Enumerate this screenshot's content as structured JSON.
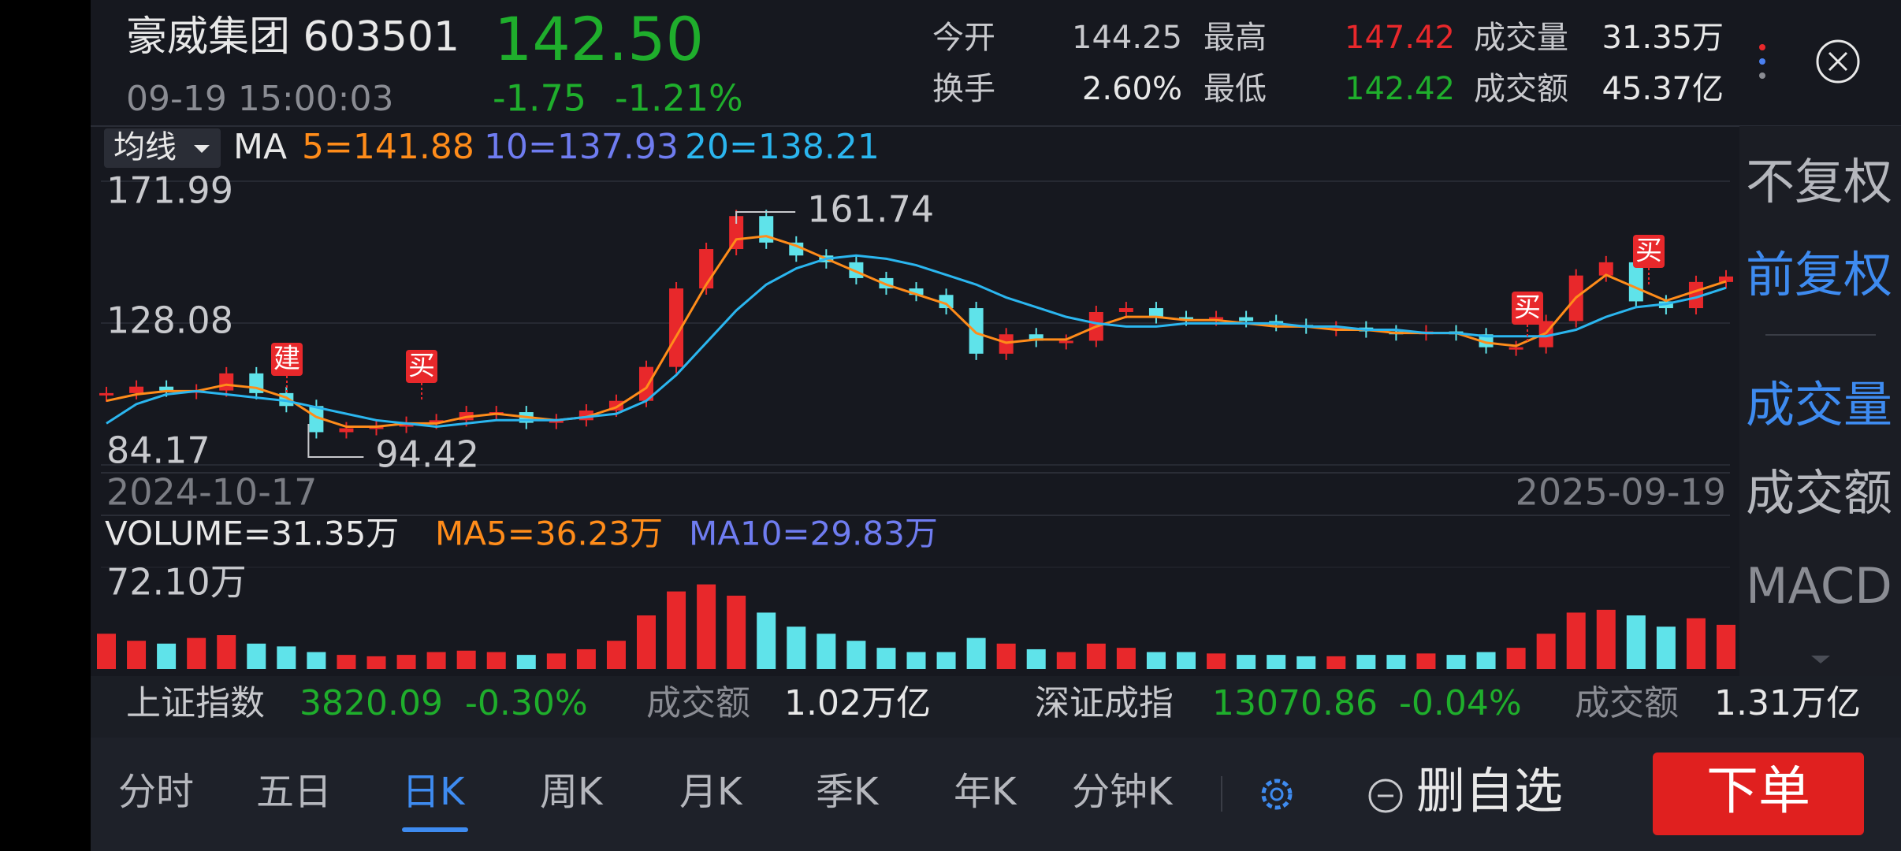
{
  "header": {
    "name": "豪威集团 603501",
    "price": "142.50",
    "time": "09-19 15:00:03",
    "change": "-1.75",
    "change_pct": "-1.21%",
    "stats": [
      {
        "label": "今开",
        "value": "144.25"
      },
      {
        "label": "换手",
        "value": "2.60%"
      },
      {
        "label": "最高",
        "value": "147.42"
      },
      {
        "label": "最低",
        "value": "142.42"
      },
      {
        "label": "成交量",
        "value": "31.35万"
      },
      {
        "label": "成交额",
        "value": "45.37亿"
      }
    ]
  },
  "chart_data": {
    "type": "candlestick",
    "ma_selector": "均线",
    "ma_title": "MA",
    "ma_labels": [
      {
        "text": "5=141.88",
        "color": "#ff8c1a"
      },
      {
        "text": "10=137.93",
        "color": "#6f7cf0"
      },
      {
        "text": "20=138.21",
        "color": "#2bb6ef"
      }
    ],
    "ylim": [
      84.17,
      171.99
    ],
    "yticks": [
      84.17,
      128.08,
      171.99
    ],
    "grid": true,
    "date_range": [
      "2024-10-17",
      "2025-09-19"
    ],
    "prices": [
      106.4,
      108.4,
      107.2,
      107.2,
      112.5,
      106.4,
      102.4,
      94.3,
      95.5,
      96.0,
      97.2,
      98.0,
      100.5,
      100.5,
      97.2,
      98.0,
      101.0,
      104.0,
      114.5,
      138.8,
      151.0,
      161.2,
      153.0,
      149.0,
      146.9,
      142.0,
      138.8,
      136.8,
      132.7,
      118.6,
      124.6,
      122.6,
      122.6,
      131.5,
      132.7,
      129.9,
      129.5,
      129.9,
      128.7,
      127.5,
      126.7,
      126.7,
      125.5,
      124.6,
      125.5,
      124.6,
      120.6,
      120.6,
      128.7,
      142.8,
      146.9,
      134.8,
      132.7,
      140.8,
      142.5
    ],
    "ma_lines": [
      {
        "color": "#ff8c1a",
        "values": [
          104,
          106,
          107,
          107,
          109,
          108,
          105,
          99,
          96,
          96,
          97,
          97,
          99,
          100,
          99,
          98,
          99,
          102,
          108,
          124,
          140,
          154,
          155,
          152,
          148,
          144,
          140,
          137,
          134,
          125,
          122,
          123,
          123,
          127,
          130,
          130,
          129,
          129,
          128,
          127,
          127,
          126,
          126,
          125,
          125,
          125,
          122,
          121,
          125,
          136,
          143,
          139,
          135,
          138,
          141
        ]
      },
      {
        "color": "#2bb6ef",
        "values": [
          97,
          103,
          106,
          107,
          106,
          105,
          104,
          102,
          100,
          98,
          97,
          96,
          97,
          98,
          98,
          98,
          99,
          100,
          104,
          112,
          122,
          132,
          140,
          145,
          148,
          149,
          148,
          146,
          143,
          140,
          136,
          133,
          130,
          128,
          127,
          127,
          128,
          128,
          128,
          128,
          127,
          127,
          126,
          126,
          125,
          125,
          124,
          124,
          124,
          126,
          130,
          133,
          134,
          136,
          139
        ]
      }
    ],
    "high": 161.74,
    "low": 94.42,
    "signals": [
      "建",
      "买",
      "买",
      "买"
    ],
    "up_color": "#e8282b",
    "down_color": "#5fe3ea"
  },
  "volume_chart": {
    "type": "bar",
    "labels": [
      {
        "text": "VOLUME=31.35万",
        "color": "#e8e8e8"
      },
      {
        "text": "MA5=36.23万",
        "color": "#ff8c1a"
      },
      {
        "text": "MA10=29.83万",
        "color": "#6f7cf0"
      }
    ],
    "values": [
      25,
      20,
      18,
      22,
      24,
      18,
      16,
      12,
      10,
      9,
      10,
      12,
      13,
      12,
      10,
      11,
      14,
      20,
      38,
      55,
      60,
      52,
      40,
      30,
      25,
      20,
      15,
      12,
      12,
      22,
      18,
      14,
      12,
      18,
      15,
      12,
      12,
      11,
      10,
      10,
      9,
      9,
      10,
      10,
      11,
      10,
      12,
      15,
      25,
      40,
      42,
      38,
      30,
      36,
      31.35
    ],
    "ylim": [
      0,
      72.1
    ],
    "yticks": [
      {
        "value": 72.1,
        "label": "72.10万"
      }
    ]
  },
  "side_panel": [
    "不复权",
    "前复权",
    "成交量",
    "成交额",
    "MACD"
  ],
  "index_bar": [
    {
      "name": "上证指数",
      "value": "3820.09",
      "change": "-0.30%",
      "amount_label": "成交额",
      "amount": "1.02万亿"
    },
    {
      "name": "深证成指",
      "value": "13070.86",
      "change": "-0.04%",
      "amount_label": "成交额",
      "amount": "1.31万亿"
    }
  ],
  "tabs": [
    "分时",
    "五日",
    "日K",
    "周K",
    "月K",
    "季K",
    "年K",
    "分钟K"
  ],
  "actions": {
    "watchlist": "删自选",
    "order": "下单"
  }
}
